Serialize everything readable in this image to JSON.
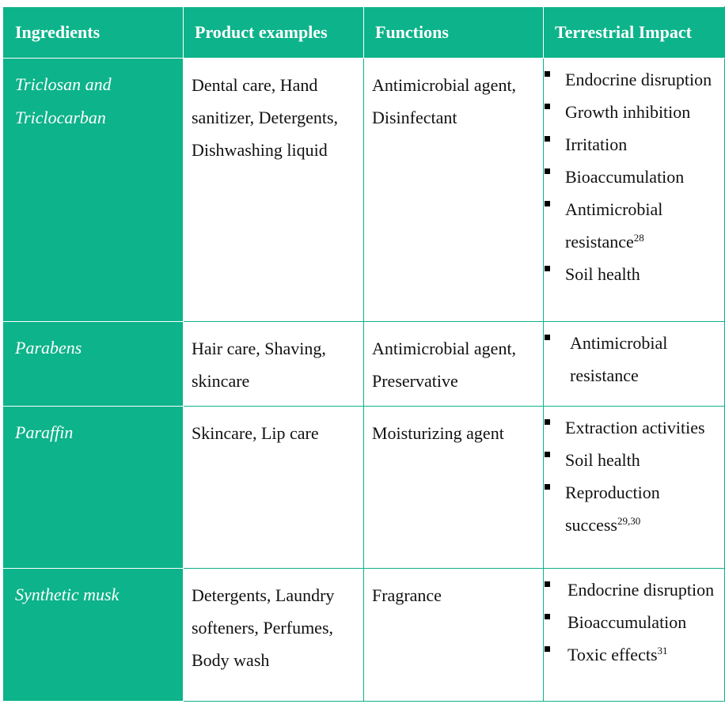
{
  "table": {
    "headers": [
      "Ingredients",
      "Product examples",
      "Functions",
      "Terrestrial Impact"
    ],
    "rows": [
      {
        "ingredient": "Triclosan and Triclocarban",
        "products": "Dental care, Hand sanitizer, Detergents, Dishwashing liquid",
        "functions": "Antimicrobial agent, Disinfectant",
        "impacts": [
          {
            "text": "Endocrine disruption"
          },
          {
            "text": "Growth inhibition"
          },
          {
            "text": "Irritation"
          },
          {
            "text": "Bioaccumulation"
          },
          {
            "text": "Antimicrobial resistance",
            "ref": "28"
          },
          {
            "text": "Soil health"
          }
        ]
      },
      {
        "ingredient": "Parabens",
        "products": "Hair care, Shaving, skincare",
        "functions": "Antimicrobial agent, Preservative",
        "impacts": [
          {
            "text": "Antimicrobial resistance"
          }
        ]
      },
      {
        "ingredient": "Paraffin",
        "products": "Skincare, Lip care",
        "functions": "Moisturizing agent",
        "impacts": [
          {
            "text": "Extraction activities"
          },
          {
            "text": "Soil health"
          },
          {
            "text": "Reproduction success",
            "ref": "29,30"
          }
        ]
      },
      {
        "ingredient": "Synthetic musk",
        "products": "Detergents, Laundry softeners, Perfumes, Body wash",
        "functions": "Fragrance",
        "impacts": [
          {
            "text": "Endocrine disruption"
          },
          {
            "text": "Bioaccumulation"
          },
          {
            "text": "Toxic effects",
            "ref": "31"
          }
        ]
      }
    ]
  },
  "colors": {
    "header_bg": "#0db38a",
    "border": "#0db289",
    "text": "#111111"
  }
}
